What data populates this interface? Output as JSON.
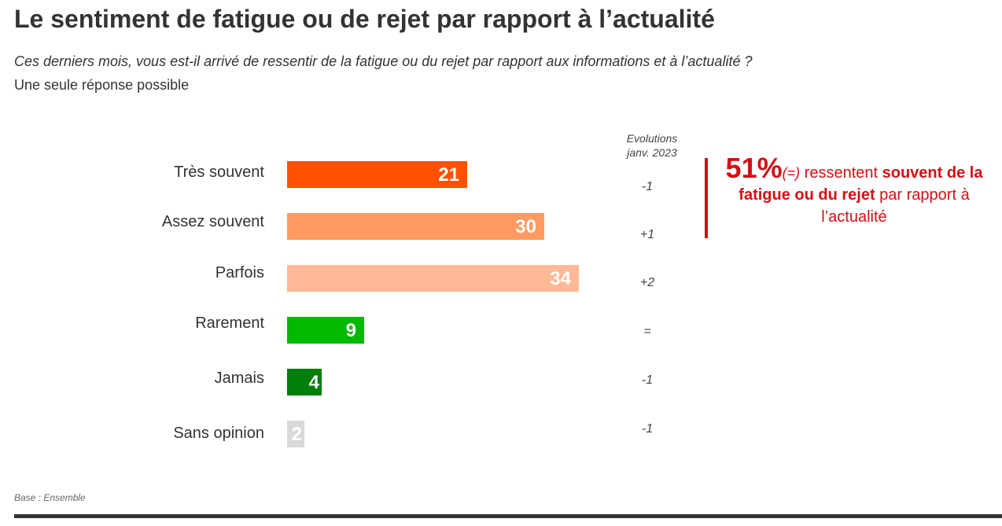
{
  "title": "Le sentiment de fatigue ou de rejet par rapport à l’actualité",
  "question": "Ces derniers mois, vous est-il arrivé de ressentir de la fatigue ou du rejet par rapport aux informations et à l’actualité ?",
  "note": "Une seule réponse possible",
  "evolutions_header": {
    "line1": "Evolutions",
    "line2": "janv. 2023"
  },
  "callout": {
    "percent": "51%",
    "change": "(=)",
    "text_regular_1": " ressentent ",
    "text_bold": "souvent de la fatigue ou du rejet",
    "text_regular_2": " par rapport à l’actualité",
    "color": "#d40f14"
  },
  "base": "Base : Ensemble",
  "chart_data": {
    "type": "bar",
    "orientation": "horizontal",
    "categories": [
      "Très souvent",
      "Assez souvent",
      "Parfois",
      "Rarement",
      "Jamais",
      "Sans opinion"
    ],
    "values": [
      21,
      30,
      34,
      9,
      4,
      2
    ],
    "value_labels": [
      "21",
      "30",
      "34",
      "9",
      "4",
      "2"
    ],
    "evolutions": [
      "-1",
      "+1",
      "+2",
      "=",
      "-1",
      "-1"
    ],
    "colors": [
      "#ff5100",
      "#ff9a62",
      "#ffb997",
      "#00b900",
      "#007f0a",
      "#d9d9d9"
    ],
    "xlim": [
      0,
      100
    ],
    "grid": false,
    "legend": "none"
  }
}
